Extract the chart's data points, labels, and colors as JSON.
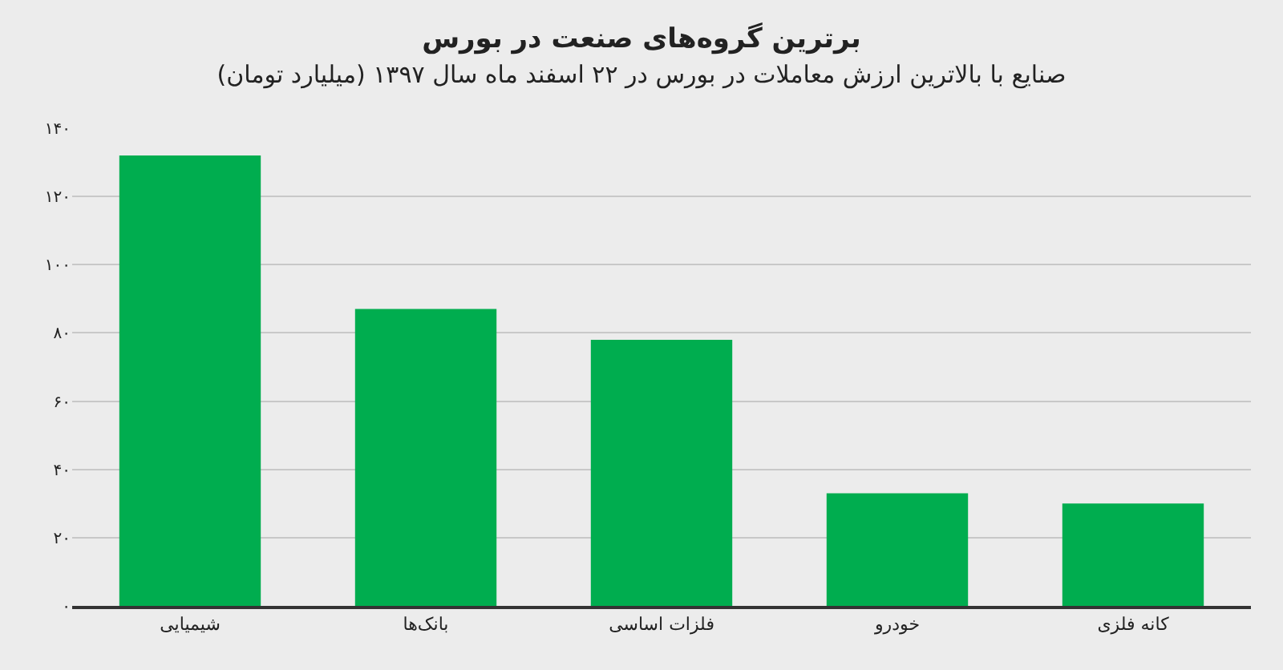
{
  "chart_data": {
    "type": "bar",
    "title": "برترین گروه‌های صنعت در بورس",
    "subtitle": "صنایع با بالاترین ارزش معاملات در بورس در ۲۲ اسفند ماه سال ۱۳۹۷ (میلیارد تومان)",
    "categories": [
      "شیمیایی",
      "بانک‌ها",
      "فلزات اساسی",
      "خودرو",
      "کانه فلزی"
    ],
    "values": [
      132,
      87,
      78,
      33,
      30
    ],
    "color": "#00ad4f",
    "ylim": [
      0,
      140
    ],
    "yticks": [
      {
        "value": 0,
        "label": "۰"
      },
      {
        "value": 20,
        "label": "۲۰"
      },
      {
        "value": 40,
        "label": "۴۰"
      },
      {
        "value": 60,
        "label": "۶۰"
      },
      {
        "value": 80,
        "label": "۸۰"
      },
      {
        "value": 100,
        "label": "۱۰۰"
      },
      {
        "value": 120,
        "label": "۱۲۰"
      },
      {
        "value": 140,
        "label": "۱۴۰"
      }
    ],
    "grid": "y"
  }
}
